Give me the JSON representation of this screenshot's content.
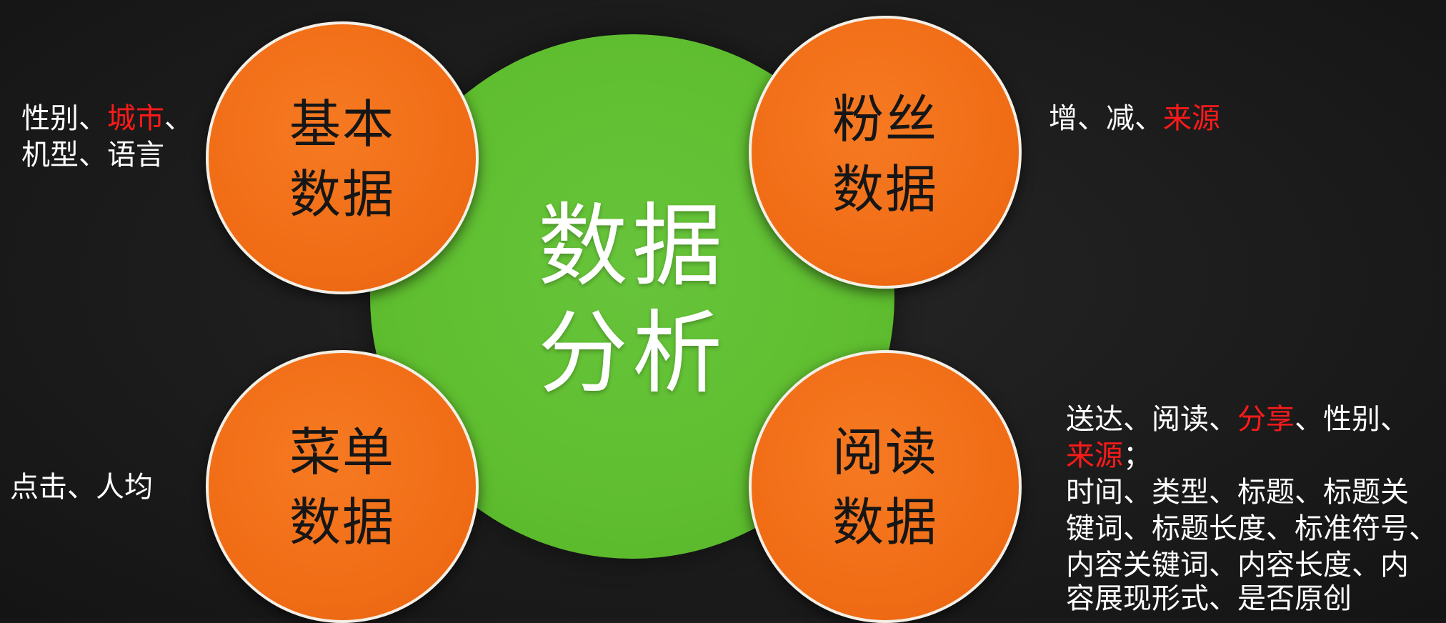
{
  "center": {
    "label": "数据\n分析"
  },
  "nodes": [
    {
      "label": "基本\n数据"
    },
    {
      "label": "粉丝\n数据"
    },
    {
      "label": "菜单\n数据"
    },
    {
      "label": "阅读\n数据"
    }
  ],
  "annotations": {
    "basic": {
      "p1": "性别、",
      "p2_red": "城市",
      "p3": "、",
      "line2": "机型、语言"
    },
    "fans": {
      "p1": "增、减、",
      "p2_red": "来源"
    },
    "menu": {
      "text": "点击、人均"
    },
    "reading": {
      "l1_a": "送达、阅读、",
      "l1_red": "分享",
      "l1_b": "、性别、",
      "l2_red": "来源",
      "l2_b": "；",
      "l3": "时间、类型、标题、标题关",
      "l4": "键词、标题长度、标准符号、",
      "l5": "内容关键词、内容长度、内",
      "l6": "容展现形式、是否原创"
    }
  },
  "colors": {
    "center": "#5fbe2f",
    "node": "#f06c15",
    "node_border": "#f4efe6",
    "background": "#1c1c1c",
    "highlight": "#ff1a1a"
  }
}
